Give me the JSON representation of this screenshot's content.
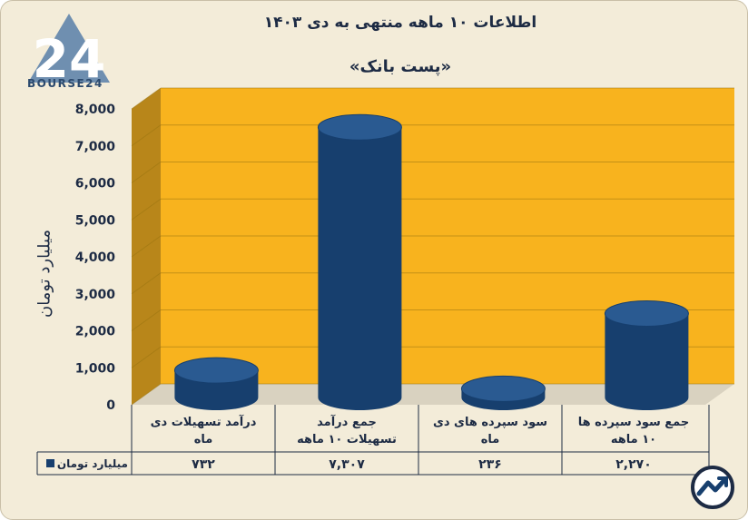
{
  "title": "اطلاعات ۱۰ ماهه منتهی به دی ۱۴۰۳",
  "subtitle": "«پست بانک»",
  "logo": {
    "text": "BOURSE24",
    "mark": "24"
  },
  "chart_data": {
    "type": "bar",
    "ylabel": "میلیارد تومان",
    "ylim": [
      0,
      8000
    ],
    "yticks": [
      {
        "value": 0,
        "label": "0"
      },
      {
        "value": 1000,
        "label": "1,000"
      },
      {
        "value": 2000,
        "label": "2,000"
      },
      {
        "value": 3000,
        "label": "3,000"
      },
      {
        "value": 4000,
        "label": "4,000"
      },
      {
        "value": 5000,
        "label": "5,000"
      },
      {
        "value": 6000,
        "label": "6,000"
      },
      {
        "value": 7000,
        "label": "7,000"
      },
      {
        "value": 8000,
        "label": "8,000"
      }
    ],
    "grid": true,
    "categories": [
      [
        "درآمد تسهیلات دی",
        "ماه"
      ],
      [
        "جمع درآمد",
        "تسهیلات ۱۰ ماهه"
      ],
      [
        "سود سپرده های دی",
        "ماه"
      ],
      [
        "جمع سود سپرده ها",
        "۱۰ ماهه"
      ]
    ],
    "series": [
      {
        "name": "میلیارد تومان",
        "values": [
          732,
          7307,
          236,
          2270
        ],
        "labels": [
          "۷۳۲",
          "۷,۳۰۷",
          "۲۳۶",
          "۲,۲۷۰"
        ]
      }
    ],
    "colors": {
      "bar": "#173f6e",
      "bar_top": "#2a5a91",
      "wall": "#f8b31e",
      "side": "#b8861a",
      "grid": "#9a7410",
      "axis_text": "#1d2b44"
    }
  }
}
